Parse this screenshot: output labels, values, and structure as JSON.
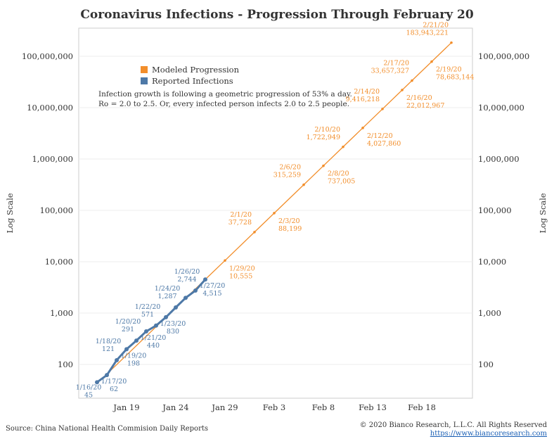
{
  "chart_data": {
    "type": "line",
    "title": "Coronavirus Infections - Progression Through February 20",
    "ylabel": "Log Scale",
    "ylabel_right": "Log Scale",
    "yscale": "log",
    "ylim": [
      30,
      200000000
    ],
    "xlim": [
      "2020-01-15",
      "2020-02-23"
    ],
    "yticks": [
      {
        "v": 100,
        "label": "100"
      },
      {
        "v": 1000,
        "label": "1,000"
      },
      {
        "v": 10000,
        "label": "10,000"
      },
      {
        "v": 100000,
        "label": "100,000"
      },
      {
        "v": 1000000,
        "label": "1,000,000"
      },
      {
        "v": 10000000,
        "label": "10,000,000"
      },
      {
        "v": 100000000,
        "label": "100,000,000"
      }
    ],
    "xticks": [
      {
        "d": "2020-01-19",
        "label": "Jan 19"
      },
      {
        "d": "2020-01-24",
        "label": "Jan 24"
      },
      {
        "d": "2020-01-29",
        "label": "Jan 29"
      },
      {
        "d": "2020-02-03",
        "label": "Feb 3"
      },
      {
        "d": "2020-02-08",
        "label": "Feb 8"
      },
      {
        "d": "2020-02-13",
        "label": "Feb 13"
      },
      {
        "d": "2020-02-18",
        "label": "Feb 18"
      }
    ],
    "grid": true,
    "legend_placement": "top-left",
    "series": [
      {
        "name": "Modeled Progression",
        "color": "#f28e2b",
        "points": [
          {
            "d": "2020-01-17",
            "v": 65
          },
          {
            "d": "2020-01-29",
            "v": 10555,
            "label": "1/29/20",
            "vlabel": "10,555"
          },
          {
            "d": "2020-02-01",
            "v": 37728,
            "label": "2/1/20",
            "vlabel": "37,728"
          },
          {
            "d": "2020-02-03",
            "v": 88199,
            "label": "2/3/20",
            "vlabel": "88,199"
          },
          {
            "d": "2020-02-06",
            "v": 315259,
            "label": "2/6/20",
            "vlabel": "315,259"
          },
          {
            "d": "2020-02-08",
            "v": 737005,
            "label": "2/8/20",
            "vlabel": "737,005"
          },
          {
            "d": "2020-02-10",
            "v": 1722949,
            "label": "2/10/20",
            "vlabel": "1,722,949"
          },
          {
            "d": "2020-02-12",
            "v": 4027860,
            "label": "2/12/20",
            "vlabel": "4,027,860"
          },
          {
            "d": "2020-02-14",
            "v": 9416218,
            "label": "2/14/20",
            "vlabel": "9,416,218"
          },
          {
            "d": "2020-02-16",
            "v": 22012967,
            "label": "2/16/20",
            "vlabel": "22,012,967"
          },
          {
            "d": "2020-02-17",
            "v": 33657327,
            "label": "2/17/20",
            "vlabel": "33,657,327"
          },
          {
            "d": "2020-02-19",
            "v": 78683144,
            "label": "2/19/20",
            "vlabel": "78,683,144"
          },
          {
            "d": "2020-02-21",
            "v": 183943221,
            "label": "2/21/20",
            "vlabel": "183,943,221"
          }
        ]
      },
      {
        "name": "Reported Infections",
        "color": "#4e79a7",
        "points": [
          {
            "d": "2020-01-16",
            "v": 45,
            "label": "1/16/20",
            "vlabel": "45"
          },
          {
            "d": "2020-01-17",
            "v": 62,
            "label": "1/17/20",
            "vlabel": "62"
          },
          {
            "d": "2020-01-18",
            "v": 121,
            "label": "1/18/20",
            "vlabel": "121"
          },
          {
            "d": "2020-01-19",
            "v": 198,
            "label": "1/19/20",
            "vlabel": "198"
          },
          {
            "d": "2020-01-20",
            "v": 291,
            "label": "1/20/20",
            "vlabel": "291"
          },
          {
            "d": "2020-01-21",
            "v": 440,
            "label": "1/21/20",
            "vlabel": "440"
          },
          {
            "d": "2020-01-22",
            "v": 571,
            "label": "1/22/20",
            "vlabel": "571"
          },
          {
            "d": "2020-01-23",
            "v": 830,
            "label": "1/23/20",
            "vlabel": "830"
          },
          {
            "d": "2020-01-24",
            "v": 1287,
            "label": "1/24/20",
            "vlabel": "1,287"
          },
          {
            "d": "2020-01-25",
            "v": 1975
          },
          {
            "d": "2020-01-26",
            "v": 2744,
            "label": "1/26/20",
            "vlabel": "2,744"
          },
          {
            "d": "2020-01-27",
            "v": 4515,
            "label": "1/27/20",
            "vlabel": "4,515"
          }
        ]
      }
    ],
    "annotations": [
      "Infection growth is following a geometric progression of 53% a day.",
      "Ro = 2.0 to 2.5. Or, every infected person infects 2.0 to 2.5 people."
    ]
  },
  "footer": {
    "source": "Source: China National Health Commision Daily Reports",
    "copyright": "© 2020 Bianco Research, L.L.C. All Rights Reserved",
    "url": "https://www.biancoresearch.com"
  }
}
